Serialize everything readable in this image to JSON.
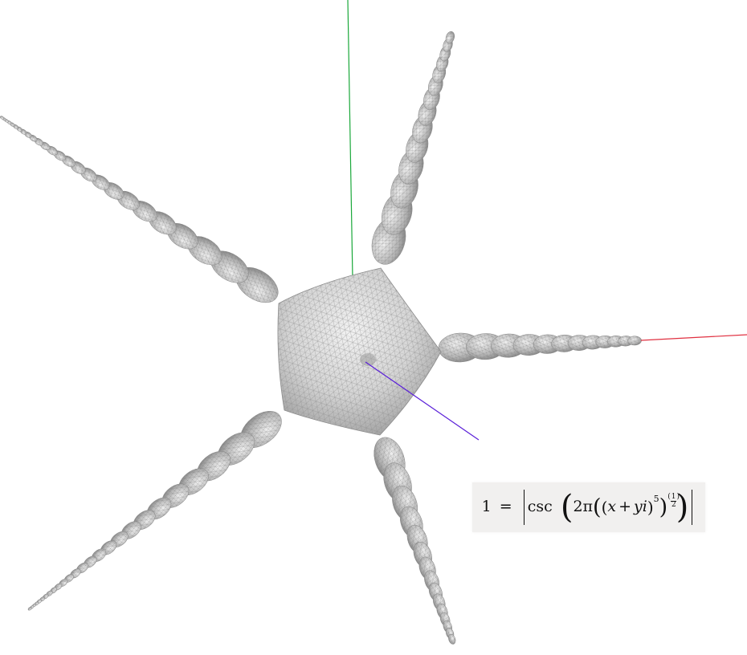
{
  "formula": {
    "lhs": "1",
    "eq": "=",
    "fn": "csc",
    "coef": "2π",
    "x": "x",
    "plus": "+",
    "yi": "yi",
    "exp": "5",
    "frac_num": "1",
    "frac_den": "2"
  },
  "colors": {
    "x_axis": "#e03040",
    "y_axis": "#1aa83a",
    "z_axis": "#5a1fd8",
    "surface_light": "#e2e2e2",
    "surface_dark": "#8f8f8f",
    "mesh": "#7a7a7a"
  }
}
